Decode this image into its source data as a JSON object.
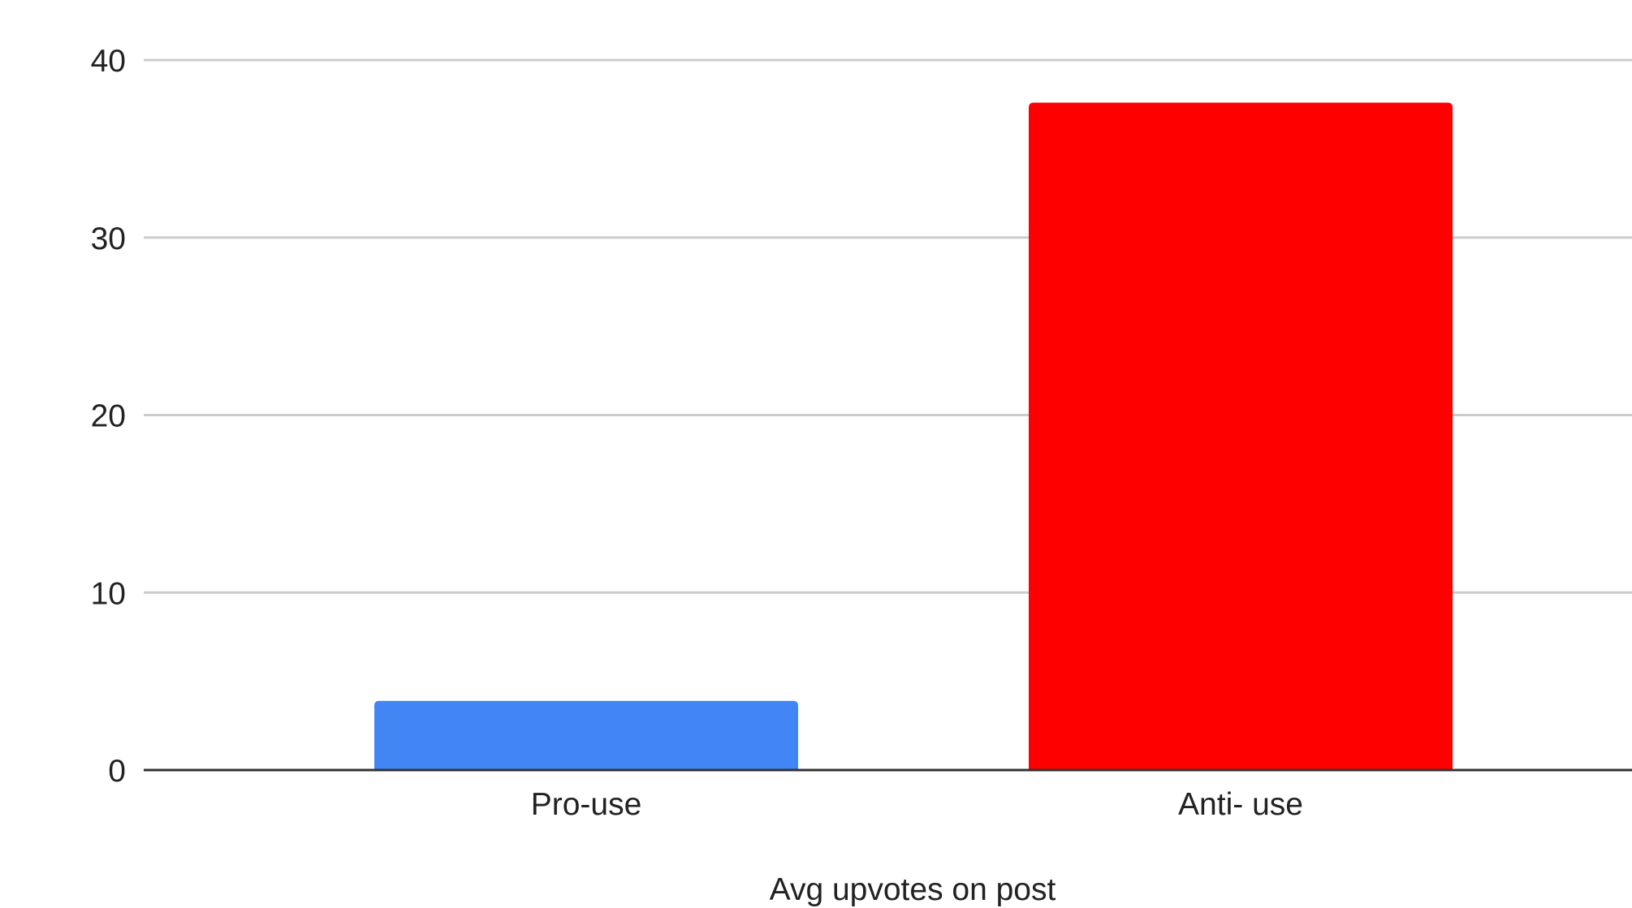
{
  "chart_data": {
    "type": "bar",
    "title": "",
    "xlabel": "Avg upvotes on post",
    "ylabel": "",
    "categories": [
      "Pro-use",
      "Anti- use"
    ],
    "values": [
      3.9,
      37.6
    ],
    "colors": [
      "#4285f4",
      "#ff0000"
    ],
    "ylim": [
      0,
      40
    ],
    "yticks": [
      "0",
      "10",
      "20",
      "30",
      "40"
    ],
    "grid": true
  }
}
